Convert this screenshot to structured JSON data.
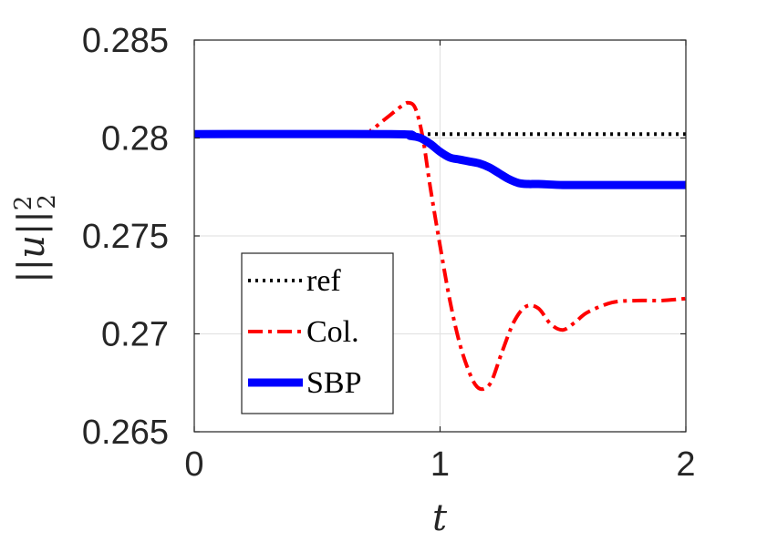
{
  "chart_data": {
    "type": "line",
    "xlabel": "t",
    "ylabel": "||u||_2^2",
    "xlim": [
      0,
      2
    ],
    "ylim": [
      0.265,
      0.285
    ],
    "xticks": [
      0,
      1,
      2
    ],
    "xtick_labels": [
      "0",
      "1",
      "2"
    ],
    "yticks": [
      0.265,
      0.27,
      0.275,
      0.28,
      0.285
    ],
    "ytick_labels": [
      "0.265",
      "0.27",
      "0.275",
      "0.28",
      "0.285"
    ],
    "grid": true,
    "legend_position": "bottom-left",
    "series": [
      {
        "name": "ref",
        "color": "#000000",
        "style": "dotted",
        "x": [
          0,
          2
        ],
        "y": [
          0.2802,
          0.2802
        ]
      },
      {
        "name": "Col.",
        "color": "#ff0000",
        "style": "dashdot",
        "x": [
          0,
          0.68,
          0.72,
          0.76,
          0.8,
          0.84,
          0.87,
          0.9,
          0.93,
          0.96,
          1.0,
          1.04,
          1.08,
          1.12,
          1.15,
          1.18,
          1.21,
          1.25,
          1.3,
          1.35,
          1.4,
          1.45,
          1.5,
          1.55,
          1.6,
          1.7,
          1.8,
          1.9,
          2.0
        ],
        "y": [
          0.2802,
          0.2802,
          0.2804,
          0.2808,
          0.2812,
          0.2816,
          0.2818,
          0.2815,
          0.28,
          0.2775,
          0.2745,
          0.2717,
          0.2695,
          0.268,
          0.2673,
          0.2672,
          0.2676,
          0.269,
          0.2706,
          0.2714,
          0.2713,
          0.2705,
          0.2702,
          0.2706,
          0.2711,
          0.2716,
          0.2717,
          0.2717,
          0.2718
        ]
      },
      {
        "name": "SBP",
        "color": "#0000ff",
        "style": "solid-thick",
        "x": [
          0,
          0.8,
          0.88,
          0.92,
          0.96,
          1.0,
          1.04,
          1.08,
          1.12,
          1.16,
          1.2,
          1.24,
          1.28,
          1.32,
          1.36,
          1.4,
          1.5,
          1.6,
          1.7,
          1.8,
          2.0
        ],
        "y": [
          0.2802,
          0.2802,
          0.2801,
          0.28,
          0.2797,
          0.2793,
          0.279,
          0.2789,
          0.2788,
          0.2787,
          0.2785,
          0.2782,
          0.2779,
          0.2777,
          0.27765,
          0.27765,
          0.2776,
          0.2776,
          0.2776,
          0.2776,
          0.2776
        ]
      }
    ]
  }
}
